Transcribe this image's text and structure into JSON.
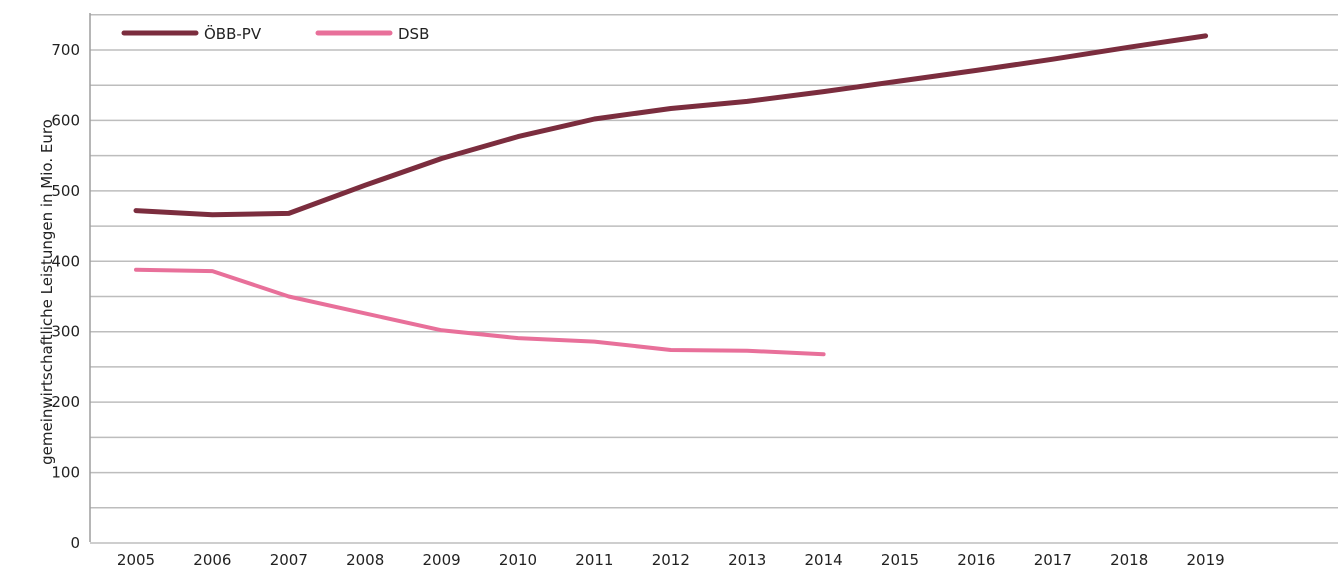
{
  "chart_data": {
    "type": "line",
    "title": "",
    "xlabel": "",
    "ylabel": "gemeinwirtschaftliche Leistungen in Mio. Euro",
    "x": [
      "2005",
      "2006",
      "2007",
      "2008",
      "2009",
      "2010",
      "2011",
      "2012",
      "2013",
      "2014",
      "2015",
      "2016",
      "2017",
      "2018",
      "2019"
    ],
    "ylim": [
      0,
      700
    ],
    "yticks": [
      0,
      100,
      200,
      300,
      400,
      500,
      600,
      700
    ],
    "grid": true,
    "legend_position": "top-left",
    "series": [
      {
        "name": "ÖBB-PV",
        "color": "#7b2d3e",
        "values": [
          472,
          466,
          468,
          508,
          546,
          577,
          602,
          617,
          627,
          641,
          656,
          671,
          687,
          704,
          720
        ]
      },
      {
        "name": "DSB",
        "color": "#e8709a",
        "values": [
          388,
          386,
          350,
          326,
          302,
          291,
          286,
          274,
          273,
          268,
          null,
          null,
          null,
          null,
          null
        ]
      }
    ]
  }
}
